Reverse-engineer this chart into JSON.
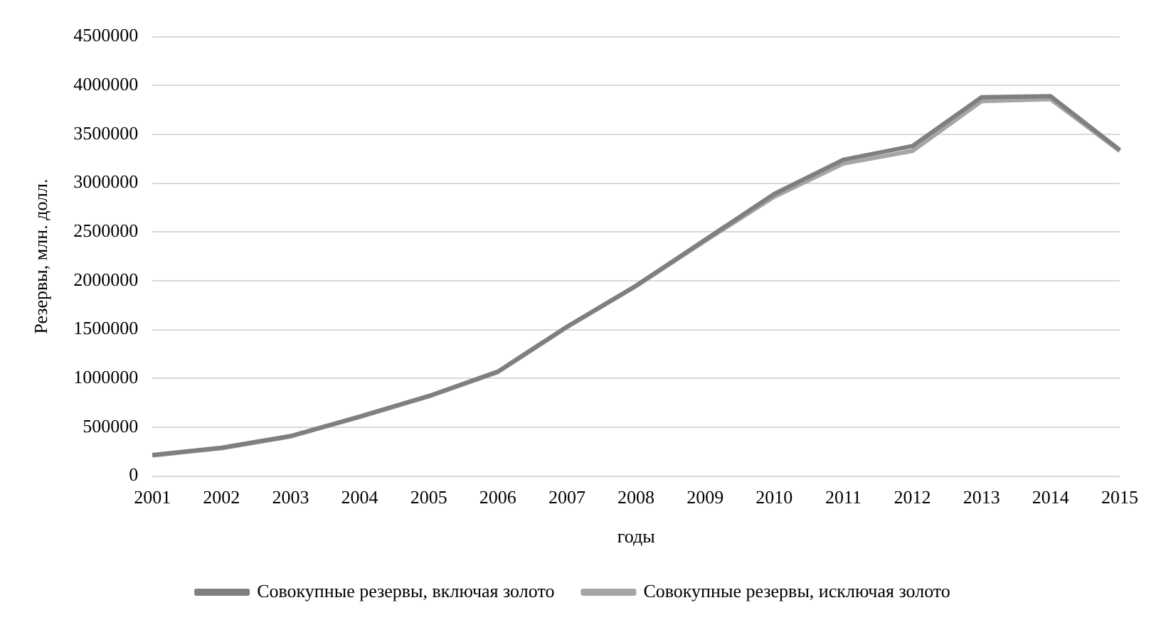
{
  "chart_data": {
    "type": "line",
    "xlabel": "годы",
    "ylabel": "Резервы, млн. долл.",
    "categories": [
      "2001",
      "2002",
      "2003",
      "2004",
      "2005",
      "2006",
      "2007",
      "2008",
      "2009",
      "2010",
      "2011",
      "2012",
      "2013",
      "2014",
      "2015"
    ],
    "series": [
      {
        "name": "Совокупные резервы, включая золото",
        "color": "#7f7f7f",
        "values": [
          215000,
          290000,
          410000,
          610000,
          820000,
          1070000,
          1530000,
          1950000,
          2420000,
          2890000,
          3240000,
          3380000,
          3880000,
          3890000,
          3340000
        ]
      },
      {
        "name": "Совокупные резервы, исключая золото",
        "color": "#a5a5a5",
        "values": [
          210000,
          285000,
          405000,
          605000,
          815000,
          1065000,
          1525000,
          1945000,
          2410000,
          2860000,
          3200000,
          3330000,
          3840000,
          3860000,
          3330000
        ]
      }
    ],
    "ylim": [
      0,
      4500000
    ],
    "yticks": [
      0,
      500000,
      1000000,
      1500000,
      2000000,
      2500000,
      3000000,
      3500000,
      4000000,
      4500000
    ],
    "grid": "y",
    "legend": "bottom",
    "marker": "none",
    "line_style": "solid"
  }
}
